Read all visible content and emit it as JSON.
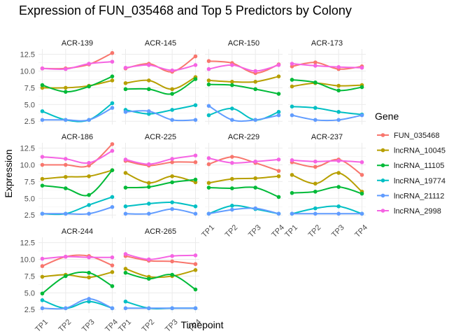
{
  "chart_data": {
    "type": "line",
    "title": "Expression of FUN_035468 and Top 5 Predictors by Colony",
    "xlabel": "Timepoint",
    "ylabel": "Expression",
    "categories": [
      "TP1",
      "TP2",
      "TP3",
      "TP4"
    ],
    "y_ticks": [
      "2.5",
      "5.0",
      "7.5",
      "10.0",
      "12.5"
    ],
    "ylim": [
      2.0,
      13.3
    ],
    "grid": true,
    "legend_title": "Gene",
    "legend_position": "right",
    "genes": [
      {
        "name": "FUN_035468",
        "color": "#F8766D"
      },
      {
        "name": "lncRNA_10045",
        "color": "#B79F00"
      },
      {
        "name": "lncRNA_11105",
        "color": "#00BA38"
      },
      {
        "name": "lncRNA_19774",
        "color": "#00BFC4"
      },
      {
        "name": "lncRNA_21112",
        "color": "#619CFF"
      },
      {
        "name": "lncRNA_2998",
        "color": "#F564E3"
      }
    ],
    "panels": [
      {
        "colony": "ACR-139",
        "series": [
          {
            "name": "FUN_035468",
            "values": [
              10.4,
              10.4,
              11.0,
              12.7
            ]
          },
          {
            "name": "lncRNA_10045",
            "values": [
              7.5,
              7.5,
              7.8,
              8.6
            ]
          },
          {
            "name": "lncRNA_11105",
            "values": [
              7.9,
              6.9,
              7.7,
              9.2
            ]
          },
          {
            "name": "lncRNA_19774",
            "values": [
              4.0,
              2.7,
              2.7,
              5.2
            ]
          },
          {
            "name": "lncRNA_21112",
            "values": [
              2.7,
              2.7,
              2.7,
              4.5
            ]
          },
          {
            "name": "lncRNA_2998",
            "values": [
              10.4,
              10.3,
              11.1,
              11.4
            ]
          }
        ]
      },
      {
        "colony": "ACR-145",
        "series": [
          {
            "name": "FUN_035468",
            "values": [
              10.4,
              11.1,
              9.9,
              12.2
            ]
          },
          {
            "name": "lncRNA_10045",
            "values": [
              8.2,
              8.6,
              7.3,
              9.1
            ]
          },
          {
            "name": "lncRNA_11105",
            "values": [
              7.3,
              7.3,
              6.6,
              8.8
            ]
          },
          {
            "name": "lncRNA_19774",
            "values": [
              4.2,
              3.6,
              4.2,
              4.9
            ]
          },
          {
            "name": "lncRNA_21112",
            "values": [
              3.9,
              4.0,
              2.7,
              2.7
            ]
          },
          {
            "name": "lncRNA_2998",
            "values": [
              10.5,
              10.9,
              10.1,
              10.9
            ]
          }
        ]
      },
      {
        "colony": "ACR-150",
        "series": [
          {
            "name": "FUN_035468",
            "values": [
              11.5,
              11.2,
              9.7,
              11.0
            ]
          },
          {
            "name": "lncRNA_10045",
            "values": [
              8.6,
              8.4,
              8.4,
              9.2
            ]
          },
          {
            "name": "lncRNA_11105",
            "values": [
              8.0,
              7.9,
              7.3,
              6.6
            ]
          },
          {
            "name": "lncRNA_19774",
            "values": [
              3.4,
              4.4,
              2.7,
              3.9
            ]
          },
          {
            "name": "lncRNA_21112",
            "values": [
              4.8,
              2.7,
              2.7,
              3.4
            ]
          },
          {
            "name": "lncRNA_2998",
            "values": [
              10.3,
              10.9,
              10.0,
              10.9
            ]
          }
        ]
      },
      {
        "colony": "ACR-173",
        "series": [
          {
            "name": "FUN_035468",
            "values": [
              10.7,
              11.3,
              10.3,
              10.7
            ]
          },
          {
            "name": "lncRNA_10045",
            "values": [
              7.7,
              8.2,
              7.8,
              7.9
            ]
          },
          {
            "name": "lncRNA_11105",
            "values": [
              8.7,
              8.3,
              7.1,
              7.6
            ]
          },
          {
            "name": "lncRNA_19774",
            "values": [
              4.7,
              4.5,
              3.9,
              3.5
            ]
          },
          {
            "name": "lncRNA_21112",
            "values": [
              3.4,
              2.7,
              2.7,
              3.4
            ]
          },
          {
            "name": "lncRNA_2998",
            "values": [
              11.1,
              10.8,
              10.6,
              10.5
            ]
          }
        ]
      },
      {
        "colony": "ACR-186",
        "series": [
          {
            "name": "FUN_035468",
            "values": [
              10.0,
              10.0,
              9.9,
              13.1
            ]
          },
          {
            "name": "lncRNA_10045",
            "values": [
              7.9,
              8.2,
              8.3,
              9.2
            ]
          },
          {
            "name": "lncRNA_11105",
            "values": [
              6.9,
              6.5,
              5.5,
              9.2
            ]
          },
          {
            "name": "lncRNA_19774",
            "values": [
              2.7,
              2.7,
              4.0,
              5.2
            ]
          },
          {
            "name": "lncRNA_21112",
            "values": [
              2.7,
              2.7,
              2.7,
              3.7
            ]
          },
          {
            "name": "lncRNA_2998",
            "values": [
              11.2,
              10.9,
              10.3,
              12.1
            ]
          }
        ]
      },
      {
        "colony": "ACR-225",
        "series": [
          {
            "name": "FUN_035468",
            "values": [
              10.6,
              9.9,
              10.4,
              10.4
            ]
          },
          {
            "name": "lncRNA_10045",
            "values": [
              8.8,
              7.3,
              8.3,
              7.4
            ]
          },
          {
            "name": "lncRNA_11105",
            "values": [
              6.6,
              6.7,
              7.4,
              7.8
            ]
          },
          {
            "name": "lncRNA_19774",
            "values": [
              3.8,
              4.2,
              4.4,
              3.8
            ]
          },
          {
            "name": "lncRNA_21112",
            "values": [
              2.7,
              2.7,
              3.4,
              2.7
            ]
          },
          {
            "name": "lncRNA_2998",
            "values": [
              10.8,
              10.1,
              10.9,
              11.4
            ]
          }
        ]
      },
      {
        "colony": "ACR-229",
        "series": [
          {
            "name": "FUN_035468",
            "values": [
              10.1,
              11.2,
              10.3,
              9.1
            ]
          },
          {
            "name": "lncRNA_10045",
            "values": [
              7.3,
              7.9,
              8.0,
              8.3
            ]
          },
          {
            "name": "lncRNA_11105",
            "values": [
              6.6,
              6.5,
              6.6,
              5.2
            ]
          },
          {
            "name": "lncRNA_19774",
            "values": [
              2.7,
              3.9,
              3.4,
              2.7
            ]
          },
          {
            "name": "lncRNA_21112",
            "values": [
              2.7,
              3.3,
              3.5,
              2.7
            ]
          },
          {
            "name": "lncRNA_2998",
            "values": [
              11.0,
              10.3,
              10.5,
              10.8
            ]
          }
        ]
      },
      {
        "colony": "ACR-237",
        "series": [
          {
            "name": "FUN_035468",
            "values": [
              10.4,
              9.7,
              10.8,
              8.5
            ]
          },
          {
            "name": "lncRNA_10045",
            "values": [
              8.5,
              7.2,
              8.8,
              6.0
            ]
          },
          {
            "name": "lncRNA_11105",
            "values": [
              5.8,
              6.0,
              6.7,
              5.7
            ]
          },
          {
            "name": "lncRNA_19774",
            "values": [
              2.7,
              3.5,
              3.8,
              2.7
            ]
          },
          {
            "name": "lncRNA_21112",
            "values": [
              2.7,
              2.7,
              2.7,
              2.7
            ]
          },
          {
            "name": "lncRNA_2998",
            "values": [
              10.7,
              10.5,
              10.6,
              10.4
            ]
          }
        ]
      },
      {
        "colony": "ACR-244",
        "series": [
          {
            "name": "FUN_035468",
            "values": [
              9.0,
              10.4,
              10.5,
              9.1
            ]
          },
          {
            "name": "lncRNA_10045",
            "values": [
              7.4,
              7.7,
              7.3,
              8.1
            ]
          },
          {
            "name": "lncRNA_11105",
            "values": [
              4.9,
              7.5,
              8.0,
              6.0
            ]
          },
          {
            "name": "lncRNA_19774",
            "values": [
              3.9,
              2.7,
              3.7,
              2.7
            ]
          },
          {
            "name": "lncRNA_21112",
            "values": [
              2.7,
              2.7,
              4.1,
              2.7
            ]
          },
          {
            "name": "lncRNA_2998",
            "values": [
              10.1,
              10.4,
              10.3,
              10.3
            ]
          }
        ]
      },
      {
        "colony": "ACR-265",
        "series": [
          {
            "name": "FUN_035468",
            "values": [
              10.5,
              9.8,
              9.7,
              9.3
            ]
          },
          {
            "name": "lncRNA_10045",
            "values": [
              8.6,
              7.4,
              7.5,
              8.4
            ]
          },
          {
            "name": "lncRNA_11105",
            "values": [
              8.0,
              7.1,
              7.7,
              5.5
            ]
          },
          {
            "name": "lncRNA_19774",
            "values": [
              3.7,
              2.7,
              2.7,
              2.7
            ]
          },
          {
            "name": "lncRNA_21112",
            "values": [
              2.7,
              2.7,
              2.7,
              2.7
            ]
          },
          {
            "name": "lncRNA_2998",
            "values": [
              10.8,
              10.0,
              10.5,
              10.6
            ]
          }
        ]
      }
    ]
  }
}
